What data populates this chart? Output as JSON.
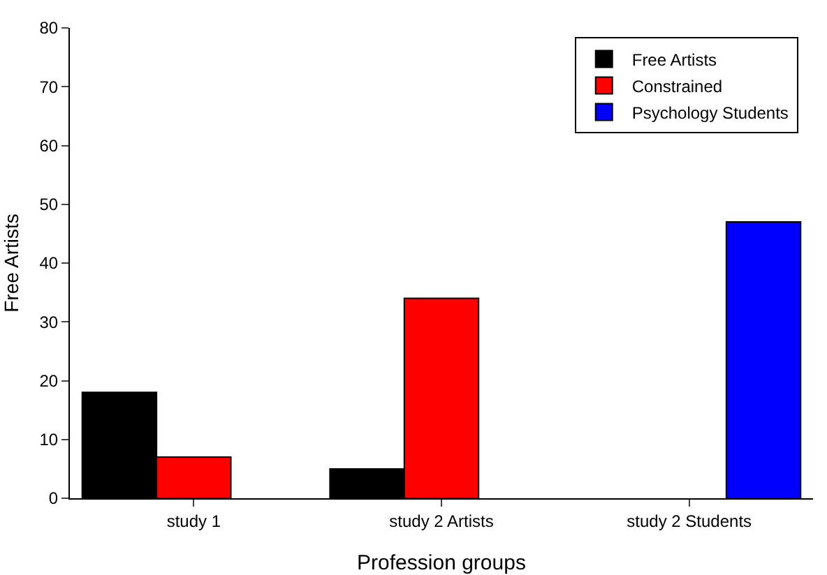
{
  "chart_data": {
    "type": "bar",
    "xlabel": "Profession groups",
    "ylabel": "Free Artists",
    "categories": [
      "study 1",
      "study 2 Artists",
      "study 2 Students"
    ],
    "series": [
      {
        "name": "Free Artists",
        "color": "#000000",
        "values": [
          18,
          5,
          null
        ]
      },
      {
        "name": "Constrained",
        "color": "#ff0000",
        "values": [
          7,
          34,
          null
        ]
      },
      {
        "name": "Psychology Students",
        "color": "#0000ff",
        "values": [
          null,
          null,
          47
        ]
      }
    ],
    "ylim": [
      0,
      80
    ],
    "yticks": [
      0,
      10,
      20,
      30,
      40,
      50,
      60,
      70,
      80
    ],
    "grid": false,
    "legend": "top right"
  }
}
